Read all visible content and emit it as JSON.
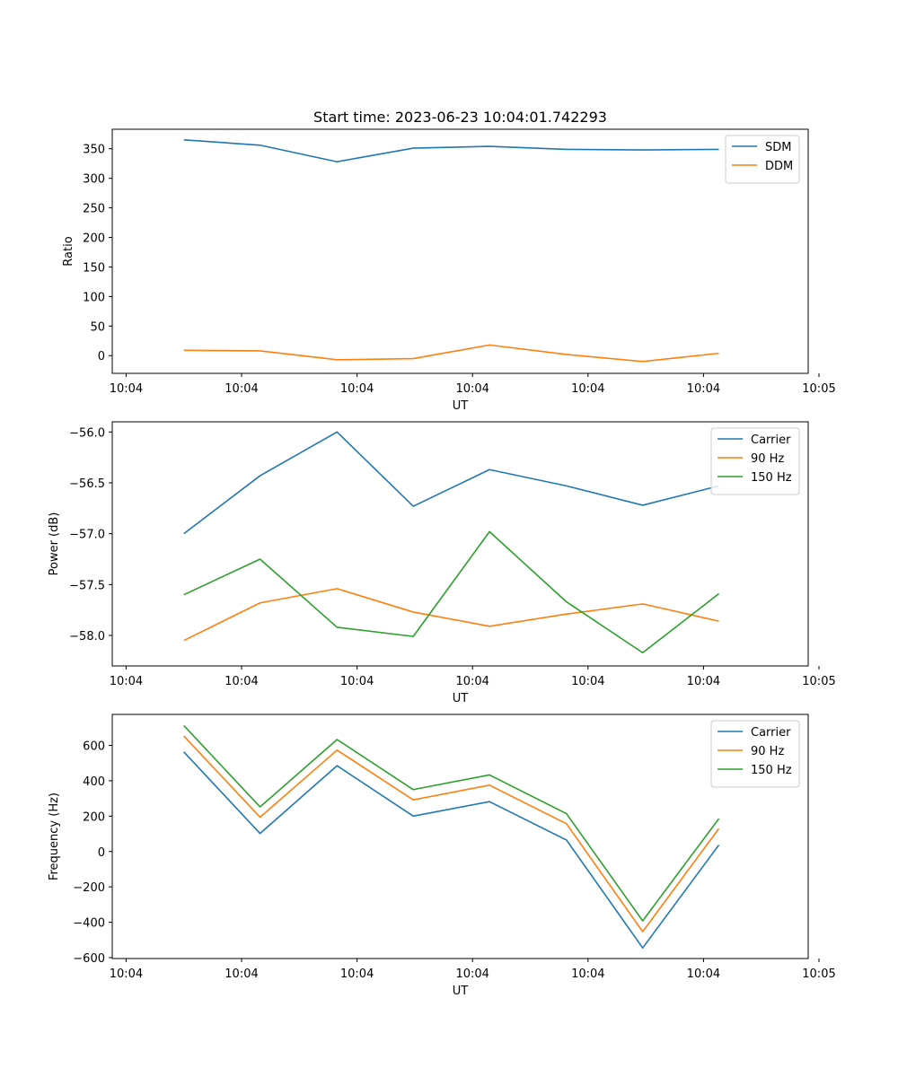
{
  "title": "Start time: 2023-06-23 10:04:01.742293",
  "chart_data": [
    {
      "type": "line",
      "title": "Start time: 2023-06-23 10:04:01.742293",
      "xlabel": "UT",
      "ylabel": "Ratio",
      "xlim": [
        -0.18,
        8.86
      ],
      "ylim": [
        -30,
        383
      ],
      "x_tick_positions": [
        0,
        1.5,
        3,
        4.5,
        6,
        7.5,
        9
      ],
      "x_tick_labels": [
        "10:04",
        "10:04",
        "10:04",
        "10:04",
        "10:04",
        "10:04",
        "10:05"
      ],
      "y_ticks": [
        0,
        50,
        100,
        150,
        200,
        250,
        300,
        350
      ],
      "y_tick_labels": [
        "0",
        "50",
        "100",
        "150",
        "200",
        "250",
        "300",
        "350"
      ],
      "grid": false,
      "legend_position": "top-right",
      "x": [
        0.75,
        1.74,
        2.74,
        3.73,
        4.72,
        5.72,
        6.71,
        7.7
      ],
      "series": [
        {
          "name": "SDM",
          "color": "#1f77b4",
          "values": [
            365,
            356,
            328,
            351,
            354,
            349,
            348,
            349
          ]
        },
        {
          "name": "DDM",
          "color": "#ff7f0e",
          "values": [
            9,
            8,
            -7,
            -5,
            18,
            2,
            -10,
            4
          ]
        }
      ]
    },
    {
      "type": "line",
      "title": "",
      "xlabel": "UT",
      "ylabel": "Power (dB)",
      "xlim": [
        -0.18,
        8.86
      ],
      "ylim": [
        -58.3,
        -55.9
      ],
      "x_tick_positions": [
        0,
        1.5,
        3,
        4.5,
        6,
        7.5,
        9
      ],
      "x_tick_labels": [
        "10:04",
        "10:04",
        "10:04",
        "10:04",
        "10:04",
        "10:04",
        "10:05"
      ],
      "y_ticks": [
        -58.0,
        -57.5,
        -57.0,
        -56.5,
        -56.0
      ],
      "y_tick_labels": [
        "−58.0",
        "−57.5",
        "−57.0",
        "−56.5",
        "−56.0"
      ],
      "grid": false,
      "legend_position": "top-right",
      "x": [
        0.75,
        1.74,
        2.74,
        3.73,
        4.72,
        5.72,
        6.71,
        7.7
      ],
      "series": [
        {
          "name": "Carrier",
          "color": "#1f77b4",
          "values": [
            -57.0,
            -56.43,
            -56.0,
            -56.73,
            -56.37,
            -56.53,
            -56.72,
            -56.53
          ]
        },
        {
          "name": "90 Hz",
          "color": "#ff7f0e",
          "values": [
            -58.05,
            -57.68,
            -57.54,
            -57.77,
            -57.91,
            -57.79,
            -57.69,
            -57.86
          ]
        },
        {
          "name": "150 Hz",
          "color": "#2ca02c",
          "values": [
            -57.6,
            -57.25,
            -57.92,
            -58.01,
            -56.98,
            -57.67,
            -58.17,
            -57.59
          ]
        }
      ]
    },
    {
      "type": "line",
      "title": "",
      "xlabel": "UT",
      "ylabel": "Frequency (Hz)",
      "xlim": [
        -0.18,
        8.86
      ],
      "ylim": [
        -605,
        775
      ],
      "x_tick_positions": [
        0,
        1.5,
        3,
        4.5,
        6,
        7.5,
        9
      ],
      "x_tick_labels": [
        "10:04",
        "10:04",
        "10:04",
        "10:04",
        "10:04",
        "10:04",
        "10:05"
      ],
      "y_ticks": [
        -600,
        -400,
        -200,
        0,
        200,
        400,
        600
      ],
      "y_tick_labels": [
        "−600",
        "−400",
        "−200",
        "0",
        "200",
        "400",
        "600"
      ],
      "grid": false,
      "legend_position": "top-right",
      "x": [
        0.75,
        1.74,
        2.74,
        3.73,
        4.72,
        5.72,
        6.71,
        7.7
      ],
      "series": [
        {
          "name": "Carrier",
          "color": "#1f77b4",
          "values": [
            563,
            102,
            485,
            200,
            282,
            65,
            -545,
            37
          ]
        },
        {
          "name": "90 Hz",
          "color": "#ff7f0e",
          "values": [
            653,
            194,
            573,
            292,
            375,
            157,
            -453,
            130
          ]
        },
        {
          "name": "150 Hz",
          "color": "#2ca02c",
          "values": [
            712,
            252,
            633,
            350,
            433,
            214,
            -392,
            186
          ]
        }
      ]
    }
  ]
}
